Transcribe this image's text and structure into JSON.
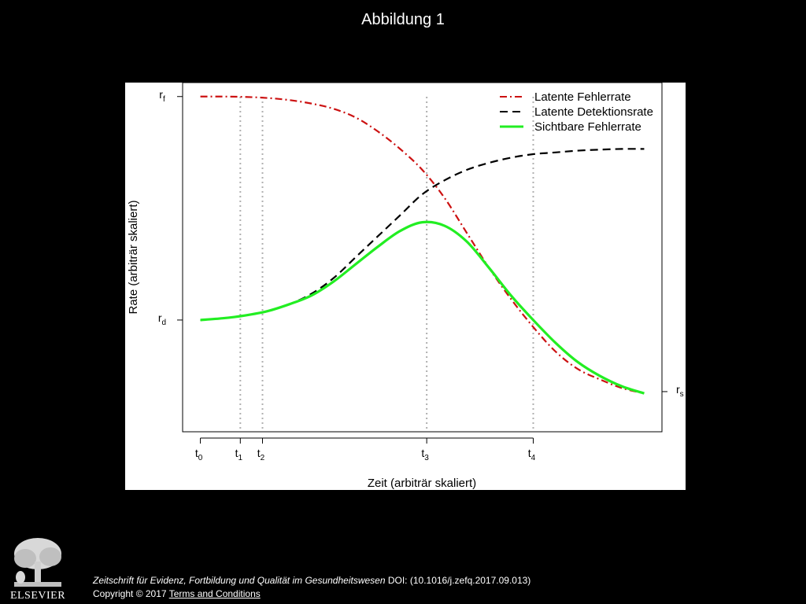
{
  "slide": {
    "title": "Abbildung 1"
  },
  "chart_data": {
    "type": "line",
    "title": "",
    "xlabel": "Zeit (arbiträr skaliert)",
    "ylabel": "Rate (arbiträr skaliert)",
    "xlim": [
      -0.4,
      10.4
    ],
    "ylim": [
      0,
      1
    ],
    "grid": false,
    "legend_position": "top-right",
    "x_ticks": [
      {
        "name": "t",
        "sub": "0",
        "x": 0
      },
      {
        "name": "t",
        "sub": "1",
        "x": 0.9
      },
      {
        "name": "t",
        "sub": "2",
        "x": 1.4
      },
      {
        "name": "t",
        "sub": "3",
        "x": 5.1
      },
      {
        "name": "t",
        "sub": "4",
        "x": 7.5
      }
    ],
    "y_ticks": [
      {
        "name": "r",
        "sub": "f",
        "y": 0.96
      },
      {
        "name": "r",
        "sub": "d",
        "y": 0.32
      }
    ],
    "right_ticks": [
      {
        "name": "r",
        "sub": "s",
        "y": 0.115
      }
    ],
    "reference_lines_x": [
      0.9,
      1.4,
      5.1,
      7.5
    ],
    "series": [
      {
        "name": "Latente Fehlerrate",
        "color": "#cc1111",
        "style": "dashdot",
        "x": [
          0,
          0.5,
          1,
          1.5,
          2,
          2.5,
          3,
          3.5,
          4,
          4.5,
          5,
          5.5,
          6,
          6.5,
          7,
          7.5,
          8,
          8.5,
          9,
          9.5,
          10
        ],
        "y": [
          0.96,
          0.96,
          0.959,
          0.956,
          0.95,
          0.94,
          0.925,
          0.9,
          0.86,
          0.81,
          0.75,
          0.67,
          0.57,
          0.47,
          0.38,
          0.3,
          0.23,
          0.18,
          0.15,
          0.125,
          0.11
        ]
      },
      {
        "name": "Latente Detektionsrate",
        "color": "#000000",
        "style": "dashed",
        "x": [
          0,
          0.5,
          1,
          1.5,
          2,
          2.5,
          3,
          3.5,
          4,
          4.5,
          5,
          5.5,
          6,
          6.5,
          7,
          7.5,
          8,
          8.5,
          9,
          9.5,
          10
        ],
        "y": [
          0.32,
          0.325,
          0.333,
          0.345,
          0.365,
          0.395,
          0.44,
          0.5,
          0.56,
          0.62,
          0.68,
          0.72,
          0.75,
          0.77,
          0.785,
          0.795,
          0.8,
          0.805,
          0.808,
          0.81,
          0.81
        ]
      },
      {
        "name": "Sichtbare Fehlerrate",
        "color": "#22ee22",
        "style": "solid",
        "x": [
          0,
          0.5,
          1,
          1.5,
          2,
          2.5,
          3,
          3.5,
          4,
          4.5,
          5,
          5.5,
          6,
          6.5,
          7,
          7.5,
          8,
          8.5,
          9,
          9.5,
          10
        ],
        "y": [
          0.32,
          0.325,
          0.333,
          0.345,
          0.365,
          0.39,
          0.43,
          0.48,
          0.53,
          0.575,
          0.6,
          0.59,
          0.545,
          0.47,
          0.39,
          0.32,
          0.255,
          0.2,
          0.16,
          0.13,
          0.11
        ]
      }
    ]
  },
  "footer": {
    "journal": "Zeitschrift für Evidenz, Fortbildung und Qualität im Gesundheitswesen",
    "doi": " DOI: (10.1016/j.zefq.2017.09.013)",
    "copyright": "Copyright © 2017 ",
    "terms_link": " Terms and Conditions"
  },
  "logo": {
    "text": "ELSEVIER",
    "icon": "elsevier-tree-logo-icon"
  }
}
